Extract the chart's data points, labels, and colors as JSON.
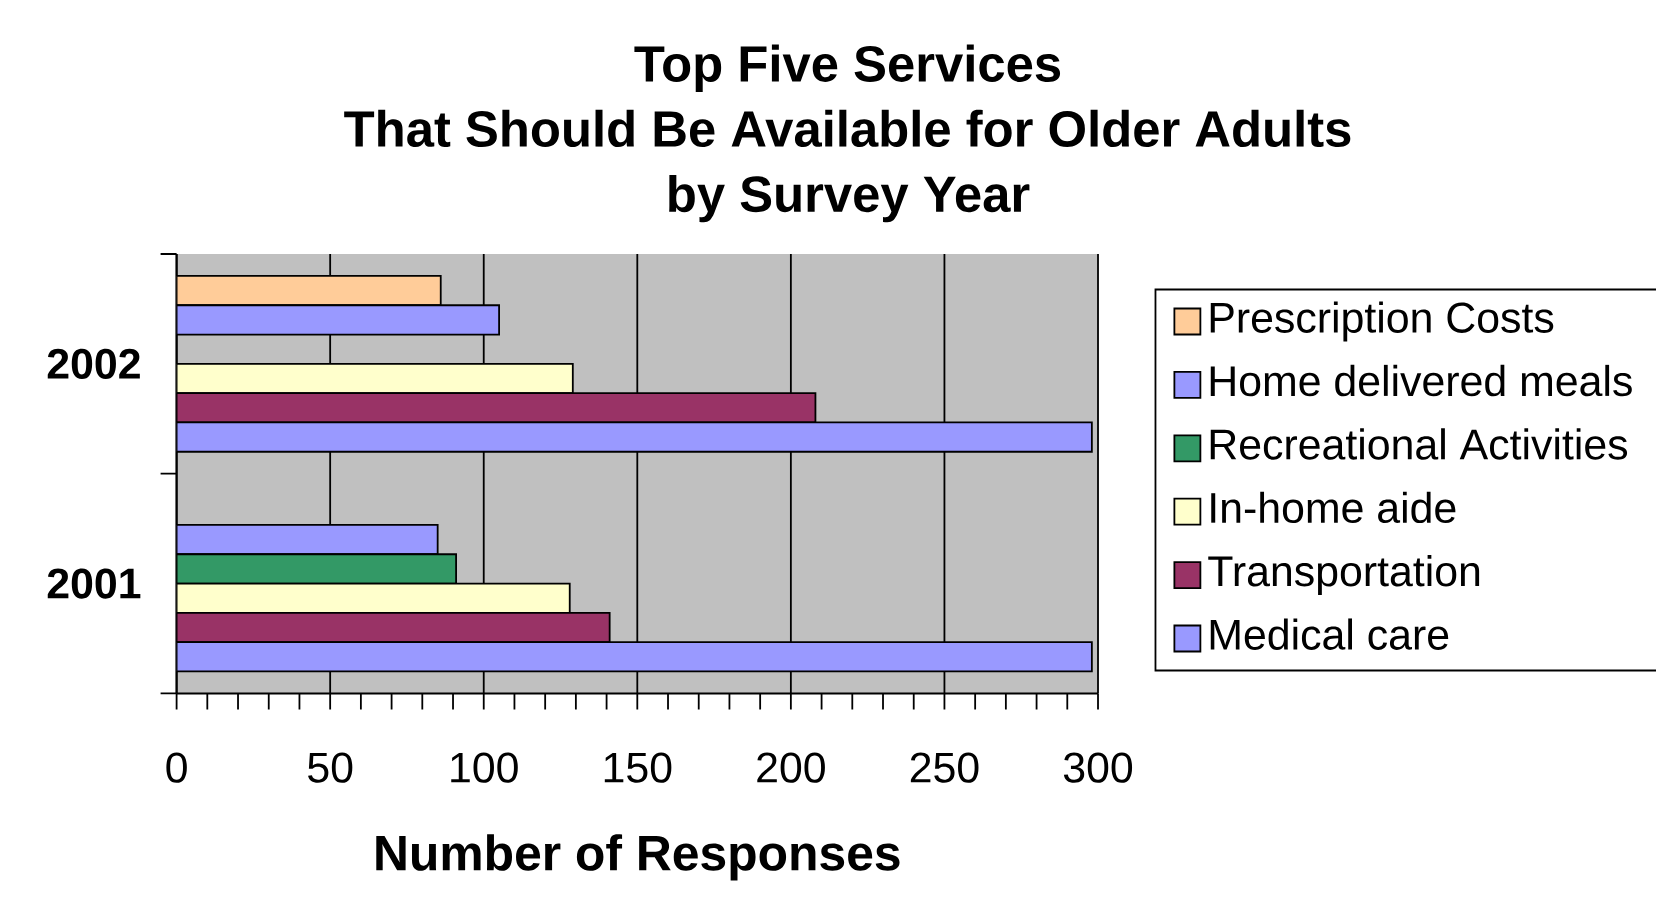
{
  "chart_data": {
    "type": "bar",
    "orientation": "horizontal",
    "title": "Top Five Services That Should Be Available for Older Adults by Survey Year",
    "xlabel": "Number of Responses",
    "categories": [
      "2002",
      "2001"
    ],
    "series": [
      {
        "name": "Prescription Costs",
        "color": "#ffcc99",
        "values": [
          86,
          null
        ]
      },
      {
        "name": "Home delivered meals",
        "color": "#9999ff",
        "values": [
          105,
          85
        ]
      },
      {
        "name": "Recreational Activities",
        "color": "#339966",
        "values": [
          null,
          91
        ]
      },
      {
        "name": "In-home aide",
        "color": "#ffffcc",
        "values": [
          129,
          128
        ]
      },
      {
        "name": "Transportation",
        "color": "#993366",
        "values": [
          208,
          141
        ]
      },
      {
        "name": "Medical care",
        "color": "#9999ff",
        "values": [
          298,
          298
        ]
      }
    ],
    "xlim": [
      0,
      300
    ],
    "xticks": [
      0,
      {
        "value": 10,
        "label": null
      },
      {
        "value": 20,
        "label": null
      },
      {
        "value": 30,
        "label": null
      },
      {
        "value": 40,
        "label": null
      },
      50,
      {
        "value": 60,
        "label": null
      },
      {
        "value": 70,
        "label": null
      },
      {
        "value": 80,
        "label": null
      },
      {
        "value": 90,
        "label": null
      },
      100,
      {
        "value": 110,
        "label": null
      },
      {
        "value": 120,
        "label": null
      },
      {
        "value": 130,
        "label": null
      },
      {
        "value": 140,
        "label": null
      },
      150,
      {
        "value": 160,
        "label": null
      },
      {
        "value": 170,
        "label": null
      },
      {
        "value": 180,
        "label": null
      },
      {
        "value": 190,
        "label": null
      },
      200,
      {
        "value": 210,
        "label": null
      },
      {
        "value": 220,
        "label": null
      },
      {
        "value": 230,
        "label": null
      },
      {
        "value": 240,
        "label": null
      },
      250,
      {
        "value": 260,
        "label": null
      },
      {
        "value": 270,
        "label": null
      },
      {
        "value": 280,
        "label": null
      },
      {
        "value": 290,
        "label": null
      },
      300
    ],
    "grid": "x",
    "legend": "right"
  }
}
